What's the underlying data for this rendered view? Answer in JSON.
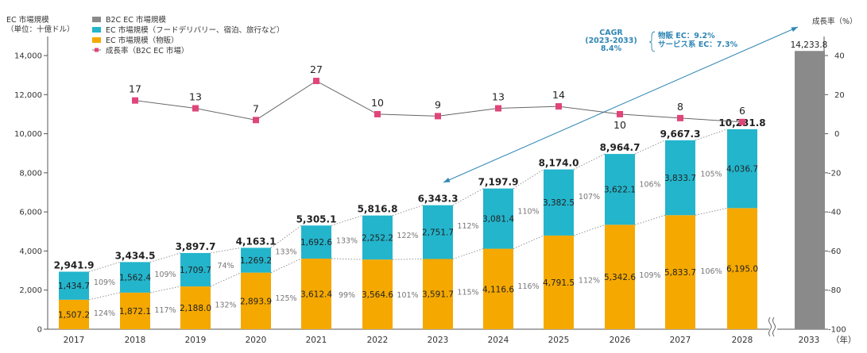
{
  "chart_data": {
    "type": "bar",
    "subtype": "stacked bar with line (dual axis)",
    "left_axis_title": [
      "EC 市場規模",
      "（単位：十億ドル）"
    ],
    "right_axis_title": "成長率（%）",
    "x_unit_label": "（年）",
    "categories": [
      "2017",
      "2018",
      "2019",
      "2020",
      "2021",
      "2022",
      "2023",
      "2024",
      "2025",
      "2026",
      "2027",
      "2028",
      "2033"
    ],
    "left_ylim": [
      0,
      14000
    ],
    "left_yticks": [
      "0",
      "2,000",
      "4,000",
      "6,000",
      "8,000",
      "10,000",
      "12,000",
      "14,000"
    ],
    "right_ylim": [
      -100,
      40
    ],
    "right_yticks": [
      "-100",
      "-80",
      "-60",
      "-40",
      "-20",
      "0",
      "20",
      "40"
    ],
    "legend": [
      {
        "label": "B2C EC 市場規模",
        "color": "#8a8a8a",
        "kind": "box"
      },
      {
        "label": "EC 市場規模（フードデリバリー、宿泊、旅行など）",
        "color": "#23b5cc",
        "kind": "box"
      },
      {
        "label": "EC 市場規模（物販）",
        "color": "#f5a800",
        "kind": "box"
      },
      {
        "label": "成長率（B2C EC 市場）",
        "color": "#e0457b",
        "kind": "line-marker"
      }
    ],
    "series": [
      {
        "name": "EC 市場規模（物販）",
        "color": "#f5a800",
        "values": [
          1507.2,
          1872.1,
          2188.0,
          2893.9,
          3612.4,
          3564.6,
          3591.7,
          4116.6,
          4791.5,
          5342.6,
          5833.7,
          6195.0,
          null
        ],
        "labels": [
          "1,507.2",
          "1,872.1",
          "2,188.0",
          "2,893.9",
          "3,612.4",
          "3,564.6",
          "3,591.7",
          "4,116.6",
          "4,791.5",
          "5,342.6",
          "5,833.7",
          "6,195.0",
          null
        ]
      },
      {
        "name": "EC 市場規模（フードデリバリー、宿泊、旅行など）",
        "color": "#23b5cc",
        "values": [
          1434.7,
          1562.4,
          1709.7,
          1269.2,
          1692.6,
          2252.2,
          2751.7,
          3081.4,
          3382.5,
          3622.1,
          3833.7,
          4036.7,
          null
        ],
        "labels": [
          "1,434.7",
          "1,562.4",
          "1,709.7",
          "1,269.2",
          "1,692.6",
          "2,252.2",
          "2,751.7",
          "3,081.4",
          "3,382.5",
          "3,622.1",
          "3,833.7",
          "4,036.7",
          null
        ]
      },
      {
        "name": "B2C EC 市場規模",
        "color": "#8a8a8a",
        "values": [
          null,
          null,
          null,
          null,
          null,
          null,
          null,
          null,
          null,
          null,
          null,
          null,
          14233.8
        ],
        "labels": [
          null,
          null,
          null,
          null,
          null,
          null,
          null,
          null,
          null,
          null,
          null,
          null,
          "14,233.8"
        ]
      }
    ],
    "totals": [
      2941.9,
      3434.5,
      3897.7,
      4163.1,
      5305.1,
      5816.8,
      6343.3,
      7197.9,
      8174.0,
      8964.7,
      9667.3,
      10231.8,
      14233.8
    ],
    "total_labels": [
      "2,941.9",
      "3,434.5",
      "3,897.7",
      "4,163.1",
      "5,305.1",
      "5,816.8",
      "6,343.3",
      "7,197.9",
      "8,174.0",
      "8,964.7",
      "9,667.3",
      "10,231.8",
      "14,233.8"
    ],
    "growth_rate": {
      "name": "成長率（B2C EC 市場）",
      "axis": "right",
      "color": "#e0457b",
      "values": [
        null,
        17,
        13,
        7,
        27,
        10,
        9,
        13,
        14,
        10,
        8,
        6,
        null
      ],
      "labels": [
        null,
        "17",
        "13",
        "7",
        "27",
        "10",
        "9",
        "13",
        "14",
        "10",
        "8",
        "6",
        null
      ]
    },
    "yoy_service_pct": [
      "109%",
      "109%",
      "74%",
      "133%",
      "133%",
      "122%",
      "112%",
      "110%",
      "107%",
      "106%",
      "105%"
    ],
    "yoy_goods_pct": [
      "124%",
      "117%",
      "132%",
      "125%",
      "99%",
      "101%",
      "115%",
      "116%",
      "112%",
      "109%",
      "106%"
    ],
    "annotation": {
      "cagr_title": "CAGR",
      "cagr_period": "(2023-2033)",
      "cagr_value": "8.4%",
      "breakdown": [
        "物販 EC：9.2%",
        "サービス系 EC：7.3%"
      ],
      "arrow_color": "#2f86b4"
    },
    "axis_break": "between 2028 and 2033"
  }
}
